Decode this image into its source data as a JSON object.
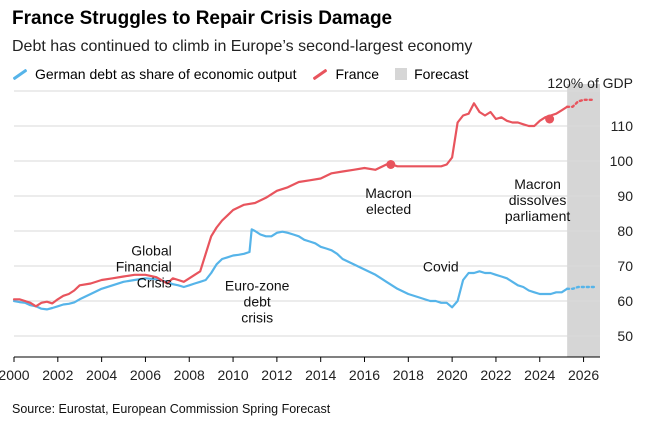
{
  "header": {
    "title": "France Struggles to Repair Crisis Damage",
    "subtitle": "Debt has continued to climb in Europe’s second-largest economy"
  },
  "legend": {
    "items": [
      {
        "label": "German debt as share of economic output",
        "color": "#56b4e9",
        "kind": "line"
      },
      {
        "label": "France",
        "color": "#e8545d",
        "kind": "line"
      },
      {
        "label": "Forecast",
        "color": "#d6d6d6",
        "kind": "box"
      }
    ]
  },
  "footer": {
    "source": "Source: Eurostat, European Commission Spring Forecast"
  },
  "chart_data": {
    "type": "line",
    "title": "France Struggles to Repair Crisis Damage",
    "subtitle": "Debt has continued to climb in Europe’s second-largest economy",
    "xlabel": "",
    "ylabel": "",
    "xlim": [
      2000,
      2026.75
    ],
    "ylim": [
      44,
      122
    ],
    "x_ticks": [
      2000,
      2002,
      2004,
      2006,
      2008,
      2010,
      2012,
      2014,
      2016,
      2018,
      2020,
      2022,
      2024,
      2026
    ],
    "y_ticks": [
      50,
      60,
      70,
      80,
      90,
      100,
      110
    ],
    "y_axis_position": "right",
    "gridlines": "horizontal",
    "top_label": "120% of GDP",
    "forecast_region": [
      2025.25,
      2026.75
    ],
    "series": [
      {
        "name": "German debt as share of economic output",
        "color": "#56b4e9",
        "x": [
          2000,
          2000.25,
          2000.5,
          2000.75,
          2001,
          2001.25,
          2001.5,
          2001.75,
          2002,
          2002.25,
          2002.5,
          2002.75,
          2003,
          2003.5,
          2004,
          2004.5,
          2005,
          2005.5,
          2006,
          2006.5,
          2007,
          2007.25,
          2007.5,
          2007.75,
          2008,
          2008.25,
          2008.5,
          2008.75,
          2009,
          2009.25,
          2009.5,
          2009.75,
          2010,
          2010.25,
          2010.5,
          2010.75,
          2010.85,
          2011,
          2011.25,
          2011.5,
          2011.75,
          2012,
          2012.25,
          2012.5,
          2012.75,
          2013,
          2013.25,
          2013.5,
          2013.75,
          2014,
          2014.25,
          2014.5,
          2014.75,
          2015,
          2015.5,
          2016,
          2016.5,
          2017,
          2017.5,
          2018,
          2018.5,
          2019,
          2019.25,
          2019.5,
          2019.75,
          2020,
          2020.25,
          2020.5,
          2020.75,
          2021,
          2021.25,
          2021.5,
          2021.75,
          2022,
          2022.25,
          2022.5,
          2022.75,
          2023,
          2023.25,
          2023.5,
          2023.75,
          2024,
          2024.25,
          2024.5,
          2024.75,
          2025,
          2025.25
        ],
        "values": [
          60,
          59.7,
          59.5,
          58.8,
          58.5,
          57.8,
          57.6,
          58,
          58.5,
          59,
          59.2,
          59.6,
          60.5,
          62,
          63.5,
          64.5,
          65.5,
          66,
          66.5,
          66.2,
          65.5,
          64.8,
          64.5,
          64,
          64.5,
          65,
          65.5,
          66,
          68,
          70.5,
          72,
          72.5,
          73,
          73.2,
          73.5,
          74,
          80.5,
          80,
          79,
          78.5,
          78.5,
          79.5,
          79.8,
          79.5,
          79,
          78.5,
          77.5,
          77,
          76.5,
          75.5,
          75,
          74.5,
          73.5,
          72,
          70.5,
          69,
          67.5,
          65.5,
          63.5,
          62,
          61,
          60,
          60,
          59.5,
          59.5,
          58.2,
          60,
          66,
          68,
          68,
          68.5,
          68,
          68,
          67.5,
          67,
          66.5,
          65.5,
          64.5,
          64,
          63,
          62.5,
          62,
          62,
          62,
          62.5,
          62.5,
          63.5
        ]
      },
      {
        "name": "France",
        "color": "#e8545d",
        "x": [
          2000,
          2000.25,
          2000.5,
          2000.75,
          2001,
          2001.25,
          2001.5,
          2001.75,
          2002,
          2002.25,
          2002.5,
          2002.75,
          2003,
          2003.5,
          2004,
          2004.5,
          2005,
          2005.5,
          2006,
          2006.5,
          2007,
          2007.25,
          2007.5,
          2007.75,
          2008,
          2008.5,
          2009,
          2009.25,
          2009.5,
          2009.75,
          2010,
          2010.5,
          2011,
          2011.5,
          2012,
          2012.5,
          2013,
          2013.5,
          2014,
          2014.5,
          2015,
          2015.5,
          2016,
          2016.5,
          2017,
          2017.25,
          2017.5,
          2017.75,
          2018,
          2018.5,
          2019,
          2019.25,
          2019.5,
          2019.75,
          2020,
          2020.25,
          2020.5,
          2020.75,
          2021,
          2021.25,
          2021.5,
          2021.75,
          2022,
          2022.25,
          2022.5,
          2022.75,
          2023,
          2023.25,
          2023.5,
          2023.75,
          2024,
          2024.25,
          2024.5,
          2024.75,
          2025,
          2025.25
        ],
        "values": [
          60.5,
          60.5,
          60,
          59.5,
          58.5,
          59.5,
          59.8,
          59.3,
          60.5,
          61.5,
          62,
          63,
          64.5,
          65,
          66,
          66.5,
          67,
          67.5,
          67.5,
          66.8,
          65,
          66.5,
          66,
          65.5,
          66.5,
          68.5,
          78.5,
          81,
          83,
          84.5,
          86,
          87.5,
          88,
          89.5,
          91.5,
          92.5,
          94,
          94.5,
          95,
          96.5,
          97,
          97.5,
          98,
          97.5,
          99,
          99,
          98.5,
          98.5,
          98.5,
          98.5,
          98.5,
          98.5,
          98.5,
          99,
          101,
          111,
          113,
          113.5,
          116.5,
          114,
          113,
          114,
          112,
          112.5,
          111.5,
          111,
          111,
          110.5,
          110,
          110,
          111.5,
          112.5,
          113,
          113.5,
          114.5,
          115.5
        ]
      },
      {
        "name": "German debt as share of economic output (forecast)",
        "color": "#56b4e9",
        "style": "dotted",
        "x": [
          2025.25,
          2025.5,
          2025.75,
          2026,
          2026.25,
          2026.5
        ],
        "values": [
          63.5,
          63.5,
          64,
          64,
          64,
          64
        ]
      },
      {
        "name": "France (forecast)",
        "color": "#e8545d",
        "style": "dotted",
        "x": [
          2025.25,
          2025.5,
          2025.75,
          2026,
          2026.25,
          2026.5
        ],
        "values": [
          115.5,
          115.5,
          117,
          117.5,
          117.5,
          117.5
        ]
      }
    ],
    "annotations": [
      {
        "lines": [
          "Global",
          "Financial",
          "Crisis"
        ],
        "x": 2007.2,
        "y": 73,
        "anchor": "end"
      },
      {
        "lines": [
          "Euro-zone",
          "debt",
          "crisis"
        ],
        "x": 2011.1,
        "y": 63,
        "anchor": "middle"
      },
      {
        "lines": [
          "Macron",
          "elected"
        ],
        "x": 2017.1,
        "y": 89.5,
        "anchor": "middle"
      },
      {
        "lines": [
          "Covid"
        ],
        "x": 2020.3,
        "y": 68.5,
        "anchor": "end"
      },
      {
        "lines": [
          "Macron",
          "dissolves",
          "parliament"
        ],
        "x": 2023.9,
        "y": 92,
        "anchor": "middle"
      }
    ],
    "markers": [
      {
        "series": "France",
        "x": 2017.2,
        "y": 99,
        "label": "Macron elected"
      },
      {
        "series": "France",
        "x": 2024.45,
        "y": 112,
        "label": "Macron dissolves parliament"
      }
    ]
  }
}
